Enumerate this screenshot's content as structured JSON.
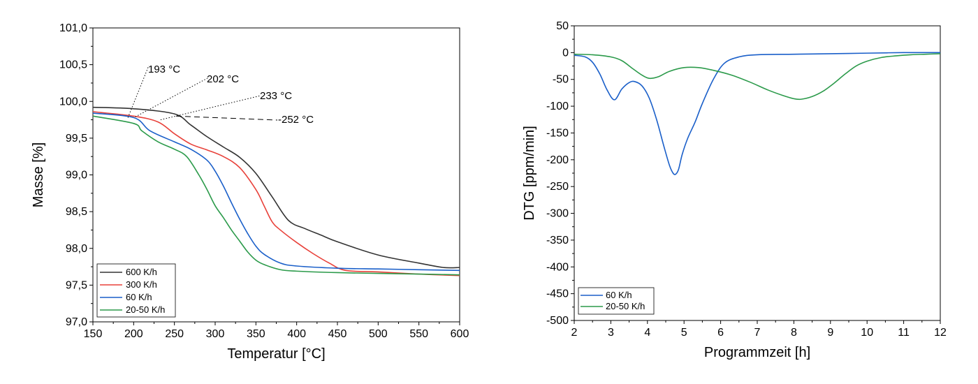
{
  "chart_data": [
    {
      "type": "line",
      "xlabel": "Temperatur [°C]",
      "ylabel": "Masse [%]",
      "xlim": [
        150,
        600
      ],
      "ylim": [
        97.0,
        101.0
      ],
      "xticks": [
        150,
        200,
        250,
        300,
        350,
        400,
        450,
        500,
        550,
        600
      ],
      "xtick_labels": [
        "150",
        "200",
        "250",
        "300",
        "350",
        "400",
        "450",
        "500",
        "550",
        "600"
      ],
      "yticks": [
        97.0,
        97.5,
        98.0,
        98.5,
        99.0,
        99.5,
        100.0,
        100.5,
        101.0
      ],
      "ytick_labels": [
        "97,0",
        "97,5",
        "98,0",
        "98,5",
        "99,0",
        "99,5",
        "100,0",
        "100,5",
        "101,0"
      ],
      "legend_position": "bottom-left",
      "series": [
        {
          "name": "600 K/h",
          "color": "#333333",
          "x": [
            150,
            200,
            250,
            270,
            290,
            310,
            330,
            350,
            370,
            390,
            410,
            430,
            450,
            500,
            550,
            580,
            600
          ],
          "y": [
            99.92,
            99.9,
            99.83,
            99.68,
            99.52,
            99.38,
            99.24,
            99.02,
            98.7,
            98.38,
            98.27,
            98.18,
            98.09,
            97.91,
            97.8,
            97.74,
            97.74
          ]
        },
        {
          "name": "300 K/h",
          "color": "#e8413a",
          "x": [
            150,
            200,
            230,
            250,
            270,
            290,
            310,
            330,
            350,
            360,
            370,
            380,
            400,
            420,
            440,
            460,
            500,
            550,
            600
          ],
          "y": [
            99.86,
            99.8,
            99.72,
            99.56,
            99.42,
            99.34,
            99.25,
            99.1,
            98.8,
            98.58,
            98.36,
            98.25,
            98.08,
            97.93,
            97.8,
            97.7,
            97.68,
            97.65,
            97.63
          ]
        },
        {
          "name": "60 K/h",
          "color": "#1a5fc9",
          "x": [
            150,
            200,
            220,
            250,
            270,
            290,
            300,
            310,
            320,
            330,
            340,
            350,
            360,
            380,
            400,
            450,
            500,
            550,
            600
          ],
          "y": [
            99.84,
            99.78,
            99.6,
            99.45,
            99.35,
            99.2,
            99.05,
            98.85,
            98.62,
            98.4,
            98.2,
            98.03,
            97.92,
            97.8,
            97.76,
            97.73,
            97.72,
            97.71,
            97.7
          ]
        },
        {
          "name": "20-50 K/h",
          "color": "#2b9a4a",
          "x": [
            150,
            200,
            210,
            230,
            250,
            265,
            280,
            290,
            300,
            310,
            320,
            330,
            340,
            350,
            360,
            380,
            400,
            450,
            500,
            550,
            600
          ],
          "y": [
            99.8,
            99.7,
            99.6,
            99.45,
            99.35,
            99.25,
            99.0,
            98.8,
            98.58,
            98.42,
            98.25,
            98.1,
            97.95,
            97.84,
            97.78,
            97.71,
            97.69,
            97.67,
            97.66,
            97.65,
            97.64
          ]
        }
      ],
      "annotations": [
        {
          "text": "193 °C",
          "x": 193,
          "y": 99.78
        },
        {
          "text": "202 °C",
          "x": 202,
          "y": 99.79
        },
        {
          "text": "233 °C",
          "x": 233,
          "y": 99.75
        },
        {
          "text": "252 °C",
          "x": 252,
          "y": 99.8
        }
      ]
    },
    {
      "type": "line",
      "xlabel": "Programmzeit [h]",
      "ylabel": "DTG [ppm/min]",
      "xlim": [
        2,
        12
      ],
      "ylim": [
        -500,
        50
      ],
      "xticks": [
        2,
        3,
        4,
        5,
        6,
        7,
        8,
        9,
        10,
        11,
        12
      ],
      "xtick_labels": [
        "2",
        "3",
        "4",
        "5",
        "6",
        "7",
        "8",
        "9",
        "10",
        "11",
        "12"
      ],
      "yticks": [
        50,
        0,
        -50,
        -100,
        -150,
        -200,
        -250,
        -300,
        -350,
        -400,
        -450,
        -500
      ],
      "ytick_labels": [
        "50",
        "0",
        "-50",
        "-100",
        "-150",
        "-200",
        "-250",
        "-300",
        "-350",
        "-400",
        "-450",
        "-500"
      ],
      "legend_position": "bottom-left",
      "series": [
        {
          "name": "60 K/h",
          "color": "#1a5fc9",
          "x": [
            2,
            2.3,
            2.5,
            2.7,
            2.9,
            3.1,
            3.3,
            3.5,
            3.65,
            3.85,
            4.05,
            4.25,
            4.45,
            4.6,
            4.7,
            4.77,
            4.85,
            4.95,
            5.1,
            5.3,
            5.5,
            5.8,
            6.1,
            6.5,
            7.0,
            8.0,
            9.0,
            10.0,
            11.0,
            12.0
          ],
          "y": [
            -5,
            -8,
            -18,
            -40,
            -70,
            -88,
            -68,
            -56,
            -54,
            -62,
            -85,
            -125,
            -175,
            -210,
            -225,
            -227,
            -218,
            -190,
            -160,
            -130,
            -95,
            -50,
            -20,
            -8,
            -4,
            -3,
            -2,
            -1,
            0,
            0
          ]
        },
        {
          "name": "20-50 K/h",
          "color": "#2b9a4a",
          "x": [
            2,
            2.5,
            3.0,
            3.3,
            3.6,
            3.85,
            4.05,
            4.3,
            4.6,
            5.0,
            5.4,
            5.8,
            6.3,
            6.8,
            7.3,
            7.7,
            8.0,
            8.2,
            8.5,
            8.8,
            9.1,
            9.4,
            9.7,
            10.0,
            10.4,
            10.8,
            11.2,
            11.6,
            12.0
          ],
          "y": [
            -3,
            -4,
            -8,
            -15,
            -30,
            -42,
            -48,
            -45,
            -35,
            -28,
            -28,
            -33,
            -42,
            -55,
            -70,
            -80,
            -86,
            -87,
            -82,
            -72,
            -57,
            -40,
            -25,
            -16,
            -9,
            -6,
            -4,
            -3,
            -2
          ]
        }
      ]
    }
  ]
}
